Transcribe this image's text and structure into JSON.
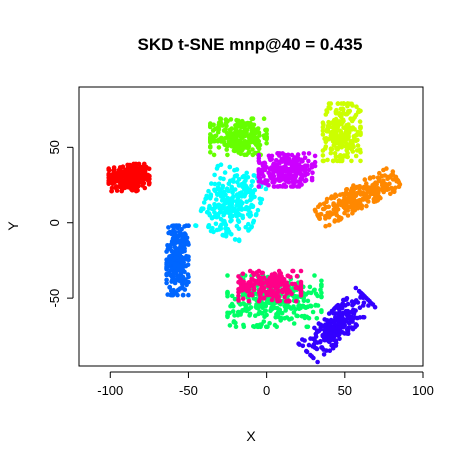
{
  "chart_data": {
    "type": "scatter",
    "title": "SKD t-SNE mnp@40 = 0.435",
    "xlabel": "X",
    "ylabel": "Y",
    "xlim": [
      -120,
      100
    ],
    "ylim": [
      -95,
      90
    ],
    "x_ticks": [
      -100,
      -50,
      0,
      50,
      100
    ],
    "y_ticks": [
      -50,
      0,
      50
    ],
    "x_tick_labels": [
      "-100",
      "-50",
      "0",
      "50",
      "100"
    ],
    "y_tick_labels": [
      "-50",
      "0",
      "50"
    ],
    "grid": false,
    "legend": "none",
    "clusters": [
      {
        "color": "#ff0000",
        "center": [
          -88,
          30
        ],
        "spread": [
          13,
          9
        ],
        "angle": 0,
        "n": 260
      },
      {
        "color": "#0066ff",
        "center": [
          -57,
          -25
        ],
        "spread": [
          7,
          23
        ],
        "angle": 0,
        "n": 260
      },
      {
        "color": "#00ffff",
        "center": [
          -22,
          13
        ],
        "spread": [
          17,
          22
        ],
        "angle": -20,
        "n": 260
      },
      {
        "color": "#66ff00",
        "center": [
          -18,
          57
        ],
        "spread": [
          18,
          12
        ],
        "angle": 0,
        "n": 260
      },
      {
        "color": "#cc00ff",
        "center": [
          13,
          35
        ],
        "spread": [
          18,
          11
        ],
        "angle": 0,
        "n": 260
      },
      {
        "color": "#ccff00",
        "center": [
          48,
          60
        ],
        "spread": [
          12,
          19
        ],
        "angle": 0,
        "n": 260
      },
      {
        "color": "#ff8800",
        "center": [
          58,
          17
        ],
        "spread": [
          28,
          8
        ],
        "angle": 28,
        "n": 260
      },
      {
        "color": "#00ff66",
        "center": [
          5,
          -52
        ],
        "spread": [
          30,
          17
        ],
        "angle": 0,
        "n": 320
      },
      {
        "color": "#ff0088",
        "center": [
          2,
          -42
        ],
        "spread": [
          20,
          10
        ],
        "angle": 0,
        "n": 200
      },
      {
        "color": "#3300ff",
        "center": [
          45,
          -68
        ],
        "spread": [
          26,
          9
        ],
        "angle": 45,
        "n": 260
      }
    ]
  }
}
